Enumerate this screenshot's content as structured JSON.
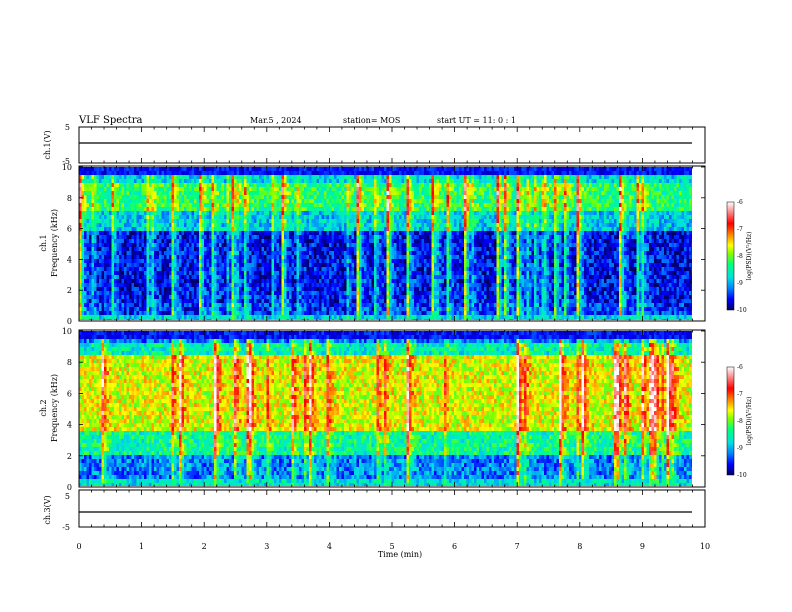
{
  "header": {
    "title": "VLF Spectra",
    "date": "Mar.5 , 2024",
    "station": "station= MOS",
    "start": "start UT = 11: 0 : 1"
  },
  "chart_data": [
    {
      "type": "line",
      "name": "ch1-waveform",
      "ylabel": "ch.1(V)",
      "ylim": [
        -5,
        5
      ],
      "y_ticks": [
        "5",
        "-5"
      ],
      "xlim": [
        0,
        10
      ],
      "signal_level": 0,
      "data_end_min": 9.8
    },
    {
      "type": "heatmap",
      "name": "ch1-spectrogram",
      "ylabel_channel": "ch.1",
      "ylabel": "Frequency (kHz)",
      "ylim": [
        0,
        10
      ],
      "y_ticks": [
        "0",
        "2",
        "4",
        "6",
        "8",
        "10"
      ],
      "xlim": [
        0,
        10
      ],
      "data_end_min": 9.8,
      "color_scale": {
        "label": "log(PSD)(V²/Hz)",
        "range": [
          -10,
          -6
        ],
        "ticks": [
          "-6",
          "-7",
          "-8",
          "-9",
          "-10"
        ]
      }
    },
    {
      "type": "heatmap",
      "name": "ch2-spectrogram",
      "ylabel_channel": "ch.2",
      "ylabel": "Frequency (kHz)",
      "ylim": [
        0,
        10
      ],
      "y_ticks": [
        "0",
        "2",
        "4",
        "6",
        "8",
        "10"
      ],
      "xlim": [
        0,
        10
      ],
      "data_end_min": 9.8,
      "color_scale": {
        "label": "log(PSD)(V²/Hz)",
        "range": [
          -10,
          -6
        ],
        "ticks": [
          "-6",
          "-7",
          "-8",
          "-9",
          "-10"
        ]
      }
    },
    {
      "type": "line",
      "name": "ch3-waveform",
      "ylabel": "ch.3(V)",
      "ylim": [
        -5,
        5
      ],
      "y_ticks": [
        "5",
        "-5"
      ],
      "xlim": [
        0,
        10
      ],
      "signal_level": 0,
      "data_end_min": 9.8,
      "xlabel": "Time (min)",
      "x_ticks": [
        "0",
        "1",
        "2",
        "3",
        "4",
        "5",
        "6",
        "7",
        "8",
        "9",
        "10"
      ]
    }
  ],
  "colors": {
    "scale": [
      "#000066",
      "#0000ff",
      "#0080ff",
      "#00e0e0",
      "#00ff80",
      "#80ff00",
      "#ffff00",
      "#ff8000",
      "#ff0000",
      "#ff8080",
      "#ffffff"
    ]
  }
}
